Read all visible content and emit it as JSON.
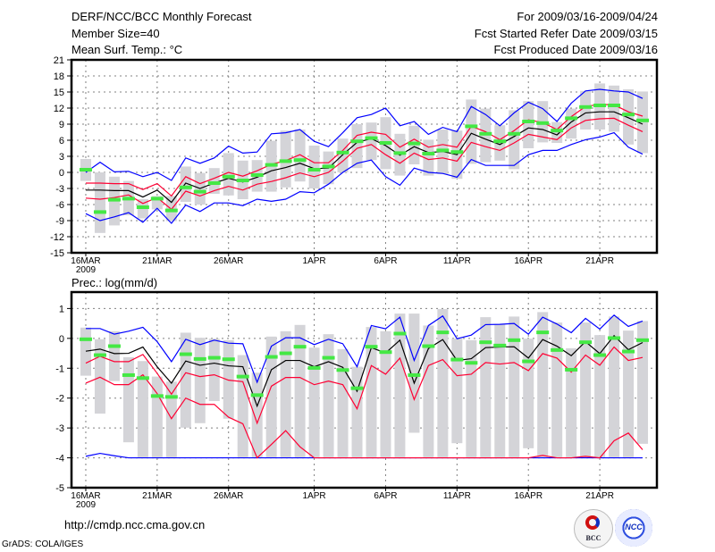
{
  "header": {
    "title": "DERF/NCC/BCC Monthly Forecast",
    "member_size": "Member Size=40",
    "variable": "Mean Surf. Temp.: °C",
    "period": "For 2009/03/16-2009/04/24",
    "started": "Fcst Started Refer Date 2009/03/15",
    "produced": "Fcst Produced Date 2009/03/16"
  },
  "footer": {
    "url": "http://cmdp.ncc.cma.gov.cn",
    "grads": "GrADS: COLA/IGES",
    "logo_bcc": "BCC",
    "logo_ncc": "NCC"
  },
  "colors": {
    "ensemble_range": "#0000ff",
    "spread": "#ff0033",
    "mean": "#000000",
    "observed": "#44e844",
    "box": "#d4d4d8",
    "grid": "#808080"
  },
  "chart_data": [
    {
      "type": "line",
      "title": "Mean Surf. Temp.: °C",
      "ylabel": "°C",
      "ylim": [
        -15,
        21
      ],
      "yticks": [
        -15,
        -12,
        -9,
        -6,
        -3,
        0,
        3,
        6,
        9,
        12,
        15,
        18,
        21
      ],
      "xlim": [
        -1,
        40
      ],
      "xticks": [
        {
          "day": 0,
          "label": "16MAR",
          "sub": "2009"
        },
        {
          "day": 5,
          "label": "21MAR"
        },
        {
          "day": 10,
          "label": "26MAR"
        },
        {
          "day": 16,
          "label": "1APR"
        },
        {
          "day": 21,
          "label": "6APR"
        },
        {
          "day": 26,
          "label": "11APR"
        },
        {
          "day": 31,
          "label": "16APR"
        },
        {
          "day": 36,
          "label": "21APR"
        }
      ],
      "grid": true,
      "series": [
        {
          "name": "box_max",
          "values": [
            2.5,
            0,
            -0.8,
            -1.6,
            -5,
            -4.4,
            -4.4,
            1.1,
            -0.1,
            0.8,
            3.6,
            2.2,
            2.3,
            5.9,
            7.8,
            8,
            5,
            3.9,
            6.3,
            9,
            9.3,
            10.3,
            7.2,
            8.7,
            6.1,
            8,
            7.8,
            13.6,
            11.9,
            8.8,
            11.6,
            13.3,
            13.3,
            9.4,
            11.9,
            15.2,
            16.6,
            16.2,
            15.5,
            15.1
          ]
        },
        {
          "name": "box_min",
          "values": [
            -1.6,
            -11.3,
            -9.9,
            -8,
            -8.6,
            -6.9,
            -9.1,
            -5.5,
            -6,
            -4,
            -4.3,
            -5,
            -3.6,
            -3.6,
            -2.8,
            -1.7,
            -3,
            -2.2,
            0,
            0.8,
            2.3,
            0.6,
            -0.6,
            1.5,
            -0.6,
            -0.3,
            -1.2,
            1.6,
            1.9,
            2.2,
            0.6,
            4.5,
            5.6,
            5.5,
            6.3,
            8,
            8,
            7.6,
            5.2,
            3.6
          ]
        },
        {
          "name": "ensemble_max",
          "values": [
            0,
            1.9,
            0.1,
            0.2,
            -0.8,
            0,
            -1.5,
            2.7,
            1.7,
            2.7,
            4.9,
            3.6,
            3.8,
            7.2,
            7.4,
            8,
            5.8,
            4.8,
            7.4,
            10.2,
            10.8,
            12,
            8.7,
            9.5,
            7.1,
            8.4,
            7.6,
            12.3,
            10.8,
            8.7,
            11.1,
            13.1,
            11.9,
            9.5,
            12.9,
            15.2,
            15.5,
            15.2,
            15,
            13.8
          ]
        },
        {
          "name": "ensemble_min",
          "values": [
            -7.7,
            -9,
            -8.3,
            -7.5,
            -9.3,
            -6.7,
            -9.5,
            -6.1,
            -7.3,
            -5.7,
            -5.7,
            -6.2,
            -5,
            -5.4,
            -5,
            -3.6,
            -3.8,
            -2.2,
            0,
            1.7,
            2.3,
            -0.8,
            -2.4,
            0.8,
            0,
            -0.2,
            -0.9,
            2.4,
            1.3,
            1.3,
            1.3,
            3.3,
            4.1,
            4.1,
            5.2,
            6.1,
            6.6,
            7.4,
            4.7,
            3.4
          ]
        },
        {
          "name": "spread_upper",
          "values": [
            -2,
            -2,
            -2.1,
            -2.1,
            -3.2,
            -2.1,
            -4.4,
            -0.8,
            -2.1,
            -1.1,
            0,
            -0.7,
            0.3,
            1.5,
            2.2,
            3.3,
            1.8,
            1.8,
            4.1,
            6.9,
            7.5,
            7.1,
            4.7,
            6.2,
            4.7,
            5.2,
            4.7,
            8.6,
            7.6,
            6.1,
            7.8,
            9.8,
            9.3,
            8,
            10.4,
            12.3,
            12.7,
            12.6,
            11.3,
            10.5
          ]
        },
        {
          "name": "spread_lower",
          "values": [
            -4.8,
            -5,
            -4.7,
            -4.2,
            -5.8,
            -4.7,
            -6.9,
            -3.5,
            -4.4,
            -3.4,
            -2.6,
            -3.3,
            -2.2,
            -1.7,
            -1,
            -0.1,
            -0.8,
            0,
            2.1,
            4.5,
            5.2,
            3.3,
            1.7,
            3.6,
            2.4,
            2.7,
            2.1,
            5.6,
            4.8,
            4.1,
            5.5,
            7.1,
            6.6,
            6.1,
            8.3,
            9.7,
            10,
            10.1,
            8.8,
            7.6
          ]
        },
        {
          "name": "ensemble_mean",
          "values": [
            -3.3,
            -3.3,
            -3.4,
            -3.4,
            -4.6,
            -3.3,
            -5.6,
            -2,
            -3,
            -2,
            -1.1,
            -1.8,
            -0.9,
            0.3,
            0.9,
            1.7,
            0.7,
            0.8,
            3.3,
            5.6,
            6.3,
            5,
            3.2,
            4.8,
            3.7,
            3.9,
            3.3,
            7.3,
            6.2,
            5.2,
            6.7,
            8.3,
            8,
            7,
            9.4,
            11.1,
            11.3,
            11.3,
            10.2,
            9
          ]
        },
        {
          "name": "observed",
          "values": [
            0.5,
            -7.4,
            -5.1,
            -4.9,
            -6.5,
            -4.9,
            -7.1,
            -2.8,
            -3.6,
            -2,
            -0.8,
            -1.5,
            -0.5,
            1.4,
            2.1,
            2.3,
            0.5,
            1.1,
            3.7,
            5.8,
            6.4,
            5.5,
            3.6,
            5.4,
            3.5,
            4.1,
            3.8,
            8.6,
            7.2,
            5.8,
            7.2,
            9.5,
            9.2,
            7.8,
            10.1,
            12.2,
            12.5,
            12.5,
            10.8,
            9.7
          ]
        }
      ]
    },
    {
      "type": "line",
      "title": "Prec.: log(mm/d)",
      "ylabel": "log(mm/d)",
      "ylim": [
        -5,
        1.55
      ],
      "yticks": [
        -5,
        -4,
        -3,
        -2,
        -1,
        0,
        1
      ],
      "xlim": [
        -1,
        40
      ],
      "xticks": [
        {
          "day": 0,
          "label": "16MAR",
          "sub": "2009"
        },
        {
          "day": 5,
          "label": "21MAR"
        },
        {
          "day": 10,
          "label": "26MAR"
        },
        {
          "day": 16,
          "label": "1APR"
        },
        {
          "day": 21,
          "label": "6APR"
        },
        {
          "day": 26,
          "label": "11APR"
        },
        {
          "day": 31,
          "label": "16APR"
        },
        {
          "day": 36,
          "label": "21APR"
        }
      ],
      "grid": true,
      "series": [
        {
          "name": "box_max",
          "values": [
            0.36,
            -0.03,
            0.24,
            -0.63,
            -0.76,
            -1.28,
            -1.45,
            0.19,
            0.02,
            -0.01,
            -0.06,
            -0.56,
            -1.15,
            0.06,
            0.24,
            0.45,
            -0.31,
            0.14,
            -0.36,
            -0.95,
            0.38,
            0.24,
            0.83,
            0.83,
            0.43,
            0.98,
            -0.01,
            -0.06,
            0.71,
            0.48,
            0.73,
            -0.01,
            0.88,
            0.53,
            -0.33,
            0.53,
            0.11,
            0.73,
            0.26,
            0.58
          ]
        },
        {
          "name": "box_min",
          "values": [
            -1.25,
            -2.52,
            -1.43,
            -3.48,
            -3.98,
            -3.98,
            -3.98,
            -2.99,
            -2.84,
            -2.1,
            -2.69,
            -3.98,
            -3.98,
            -3.98,
            -3.98,
            -3.98,
            -3.98,
            -3.98,
            -3.98,
            -3.98,
            -3.98,
            -3.98,
            -3.98,
            -3.16,
            -3.98,
            -3.98,
            -3.51,
            -3.98,
            -3.98,
            -3.98,
            -3.98,
            -3.68,
            -3.98,
            -3.98,
            -3.98,
            -3.98,
            -3.98,
            -3.98,
            -3.98,
            -3.53
          ]
        },
        {
          "name": "ensemble_max",
          "values": [
            0.33,
            0.33,
            0.14,
            0.24,
            0.37,
            -0.11,
            -0.78,
            -0.03,
            -0.21,
            -0.06,
            -0.16,
            -0.18,
            -1.47,
            -0.26,
            0.02,
            0.02,
            -0.21,
            -0.03,
            -0.18,
            -0.95,
            0.43,
            0.32,
            0.71,
            -0.74,
            0.43,
            0.75,
            -0.01,
            0.11,
            0.46,
            0.47,
            0.5,
            0.14,
            0.71,
            0.48,
            0.19,
            0.67,
            0.31,
            0.78,
            0.4,
            0.58
          ]
        },
        {
          "name": "ensemble_min",
          "values": [
            -3.95,
            -3.85,
            -3.93,
            -4,
            -4,
            -4,
            -4,
            -4,
            -4,
            -4,
            -4,
            -4,
            -4,
            -4,
            -4,
            -4,
            -4,
            -4,
            -4,
            -4,
            -4,
            -4,
            -4,
            -4,
            -4,
            -4,
            -4,
            -4,
            -4,
            -4,
            -4,
            -4,
            -4,
            -4,
            -4,
            -4,
            -4,
            -4,
            -4,
            -4
          ]
        },
        {
          "name": "spread_upper",
          "values": [
            -0.83,
            -0.6,
            -0.78,
            -0.78,
            -0.54,
            -1.17,
            -1.87,
            -1.15,
            -1.28,
            -1.22,
            -1.4,
            -1.45,
            -2.84,
            -1.6,
            -1.31,
            -1.31,
            -1.55,
            -1.43,
            -1.55,
            -2.36,
            -0.91,
            -1.2,
            -0.66,
            -2.05,
            -0.91,
            -0.71,
            -1.25,
            -1.2,
            -0.81,
            -0.86,
            -0.81,
            -1.08,
            -0.51,
            -0.66,
            -1.13,
            -0.56,
            -0.9,
            -0.29,
            -0.74,
            -0.64
          ]
        },
        {
          "name": "spread_lower",
          "values": [
            -1.5,
            -1.3,
            -1.55,
            -1.55,
            -1.22,
            -1.85,
            -2.69,
            -2,
            -2.21,
            -2.21,
            -2.64,
            -2.86,
            -4,
            -3.55,
            -3.09,
            -3.63,
            -4,
            -4,
            -4,
            -4,
            -4,
            -4,
            -4,
            -4,
            -4,
            -4,
            -4,
            -4,
            -4,
            -4,
            -4,
            -4,
            -3.92,
            -4,
            -4,
            -3.95,
            -4,
            -3.43,
            -3.17,
            -3.73
          ]
        },
        {
          "name": "ensemble_mean",
          "values": [
            -0.43,
            -0.36,
            -0.51,
            -0.5,
            -0.29,
            -0.95,
            -1.5,
            -0.76,
            -0.9,
            -0.83,
            -0.92,
            -0.95,
            -2.27,
            -1.05,
            -0.74,
            -0.74,
            -0.95,
            -0.78,
            -0.97,
            -1.77,
            -0.31,
            -0.49,
            -0.06,
            -1.5,
            -0.34,
            -0.04,
            -0.74,
            -0.68,
            -0.31,
            -0.29,
            -0.28,
            -0.66,
            -0.04,
            -0.26,
            -0.58,
            -0.11,
            -0.51,
            0.09,
            -0.38,
            -0.14
          ]
        },
        {
          "name": "observed",
          "values": [
            -0.03,
            -0.56,
            -0.26,
            -1.23,
            -1.33,
            -1.93,
            -1.96,
            -0.53,
            -0.69,
            -0.65,
            -0.7,
            -1.28,
            -1.9,
            -0.62,
            -0.5,
            -0.28,
            -0.99,
            -0.65,
            -1.06,
            -1.67,
            -0.28,
            -0.46,
            0.16,
            -1.23,
            -0.26,
            0.2,
            -0.71,
            -0.82,
            -0.13,
            -0.24,
            -0.06,
            -0.77,
            0.2,
            -0.39,
            -1.05,
            -0.13,
            -0.56,
            0.01,
            -0.44,
            -0.06
          ]
        }
      ]
    }
  ]
}
